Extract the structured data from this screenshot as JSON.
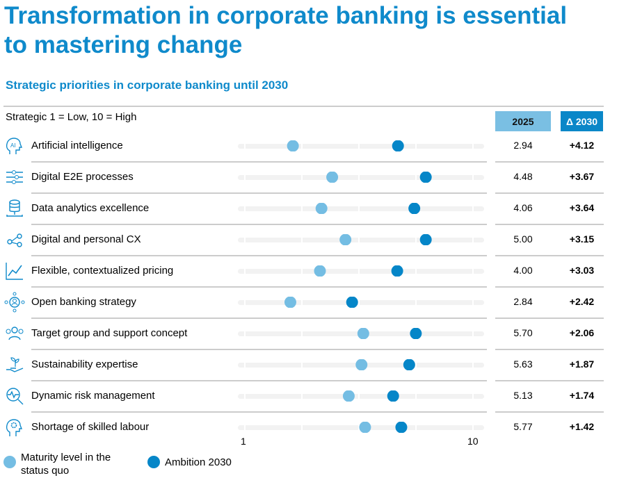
{
  "title_line1": "Transformation in corporate banking is essential",
  "title_line2": "to mastering change",
  "subtitle": "Strategic priorities in corporate banking until 2030",
  "colors": {
    "accent": "#0f8acb",
    "maturity": "#74bde3",
    "ambition": "#0586c8",
    "track": "#f2f2f2"
  },
  "chart_data": {
    "type": "dumbbell",
    "scale_note": "Strategic 1 = Low, 10 = High",
    "xlim": [
      1,
      10
    ],
    "tick_labels": [
      "1",
      "10"
    ],
    "column_headers": {
      "current": "2025",
      "delta": "Δ 2030"
    },
    "legend": {
      "maturity": "Maturity level in the status quo",
      "ambition": "Ambition 2030"
    },
    "legend_placement": "bottom-left",
    "rows": [
      {
        "label": "Artificial intelligence",
        "icon": "ai-head-icon",
        "current": "2.94",
        "delta": "+4.12",
        "v": 2.94,
        "d": 4.12
      },
      {
        "label": "Digital E2E processes",
        "icon": "process-flow-icon",
        "current": "4.48",
        "delta": "+3.67",
        "v": 4.48,
        "d": 3.67
      },
      {
        "label": "Data analytics excellence",
        "icon": "database-icon",
        "current": "4.06",
        "delta": "+3.64",
        "v": 4.06,
        "d": 3.64
      },
      {
        "label": "Digital and personal CX",
        "icon": "network-icon",
        "current": "5.00",
        "delta": "+3.15",
        "v": 5.0,
        "d": 3.15
      },
      {
        "label": "Flexible, contextualized pricing",
        "icon": "line-chart-icon",
        "current": "4.00",
        "delta": "+3.03",
        "v": 4.0,
        "d": 3.03
      },
      {
        "label": "Open banking strategy",
        "icon": "user-hub-icon",
        "current": "2.84",
        "delta": "+2.42",
        "v": 2.84,
        "d": 2.42
      },
      {
        "label": "Target group and support concept",
        "icon": "group-icon",
        "current": "5.70",
        "delta": "+2.06",
        "v": 5.7,
        "d": 2.06
      },
      {
        "label": "Sustainability expertise",
        "icon": "plant-hand-icon",
        "current": "5.63",
        "delta": "+1.87",
        "v": 5.63,
        "d": 1.87
      },
      {
        "label": "Dynamic risk management",
        "icon": "risk-magnifier-icon",
        "current": "5.13",
        "delta": "+1.74",
        "v": 5.13,
        "d": 1.74
      },
      {
        "label": "Shortage of skilled labour",
        "icon": "head-gear-icon",
        "current": "5.77",
        "delta": "+1.42",
        "v": 5.77,
        "d": 1.42
      }
    ]
  }
}
